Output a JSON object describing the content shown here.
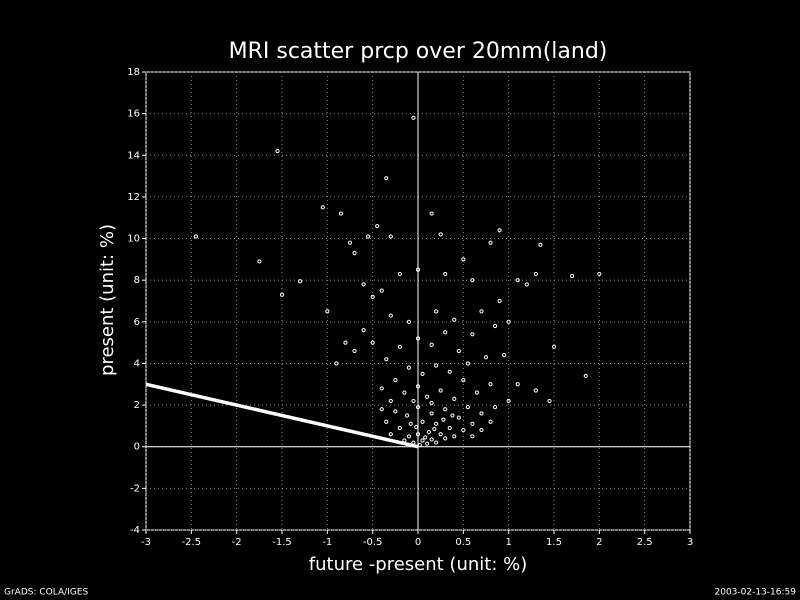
{
  "chart_data": {
    "type": "scatter",
    "title": "MRI scatter prcp over 20mm(land)",
    "xlabel": "future -present (unit: %)",
    "ylabel": "present (unit: %)",
    "footer_left": "GrADS: COLA/IGES",
    "footer_right": "2003-02-13-16:59",
    "color": "#ffffff",
    "grid": true,
    "xlim": [
      -3,
      3
    ],
    "ylim": [
      -4,
      18
    ],
    "xticks": [
      -3,
      -2.5,
      -2,
      -1.5,
      -1,
      -0.5,
      0,
      0.5,
      1,
      1.5,
      2,
      2.5,
      3
    ],
    "yticks": [
      -4,
      -2,
      0,
      2,
      4,
      6,
      8,
      10,
      12,
      14,
      16,
      18
    ],
    "x": [
      -2.45,
      -1.55,
      -1.75,
      -1.5,
      -1.3,
      -1.05,
      -1,
      -0.85,
      -0.05,
      -0.35,
      0.15,
      0.25,
      0.9,
      1.35,
      2.0,
      1.7,
      1.3,
      1.85,
      1.45,
      1.5,
      1.1,
      -0.7,
      -0.75,
      -0.55,
      -0.45,
      -0.3,
      -0.6,
      -0.5,
      -0.4,
      -0.2,
      0.0,
      0.3,
      0.5,
      0.6,
      0.8,
      0.9,
      1.2,
      0.7,
      0.85,
      1.0,
      0.6,
      0.4,
      0.2,
      -0.1,
      -0.3,
      -0.6,
      -0.8,
      -0.9,
      -0.7,
      -0.5,
      -0.35,
      -0.2,
      0.0,
      0.15,
      0.3,
      0.45,
      0.55,
      0.75,
      0.95,
      1.1,
      1.3,
      1.0,
      0.8,
      0.65,
      0.5,
      0.35,
      0.2,
      0.05,
      -0.1,
      -0.25,
      -0.4,
      -0.3,
      -0.15,
      0.0,
      0.1,
      0.25,
      0.4,
      0.55,
      0.7,
      0.85,
      0.45,
      0.3,
      0.15,
      0.0,
      -0.12,
      -0.25,
      -0.35,
      -0.2,
      -0.08,
      0.05,
      0.2,
      0.35,
      0.5,
      0.6,
      0.25,
      0.12,
      0.0,
      -0.1,
      -0.15,
      0.05,
      0.15,
      0.3,
      0.4,
      0.1,
      0.02,
      0.2,
      -0.05,
      0.08,
      0.18,
      -0.02,
      0.28,
      0.38,
      -0.05,
      0.15,
      -0.3,
      0.6,
      0.7,
      0.8,
      -0.4
    ],
    "values": [
      10.1,
      14.2,
      8.9,
      7.3,
      7.95,
      11.5,
      6.5,
      11.2,
      15.8,
      12.9,
      11.2,
      10.2,
      10.4,
      9.7,
      8.3,
      8.2,
      8.3,
      3.4,
      2.2,
      4.8,
      8.0,
      9.3,
      9.8,
      10.1,
      10.6,
      10.1,
      7.8,
      7.2,
      7.5,
      8.3,
      8.5,
      8.3,
      9.0,
      8.0,
      9.8,
      7.0,
      7.8,
      6.5,
      5.8,
      6.0,
      5.4,
      6.1,
      6.5,
      6.0,
      6.3,
      5.6,
      5.0,
      4.0,
      4.6,
      5.0,
      4.2,
      4.8,
      5.2,
      4.9,
      5.5,
      4.6,
      4.0,
      4.3,
      4.4,
      3.0,
      2.7,
      2.2,
      3.0,
      2.6,
      3.2,
      3.6,
      3.9,
      3.5,
      3.8,
      3.2,
      2.8,
      2.2,
      2.6,
      2.9,
      2.4,
      2.7,
      2.3,
      1.9,
      1.6,
      1.9,
      1.4,
      1.8,
      1.6,
      1.9,
      1.5,
      1.7,
      1.2,
      0.9,
      1.1,
      1.2,
      1.1,
      0.9,
      0.8,
      1.1,
      0.6,
      0.7,
      0.6,
      0.5,
      0.3,
      0.3,
      0.35,
      0.4,
      0.5,
      0.15,
      0.08,
      0.2,
      0.2,
      0.45,
      0.85,
      0.95,
      1.3,
      1.5,
      2.2,
      2.1,
      0.6,
      0.5,
      0.8,
      1.2,
      1.8
    ],
    "line": {
      "x": [
        -3,
        0
      ],
      "values": [
        3,
        0
      ]
    }
  }
}
